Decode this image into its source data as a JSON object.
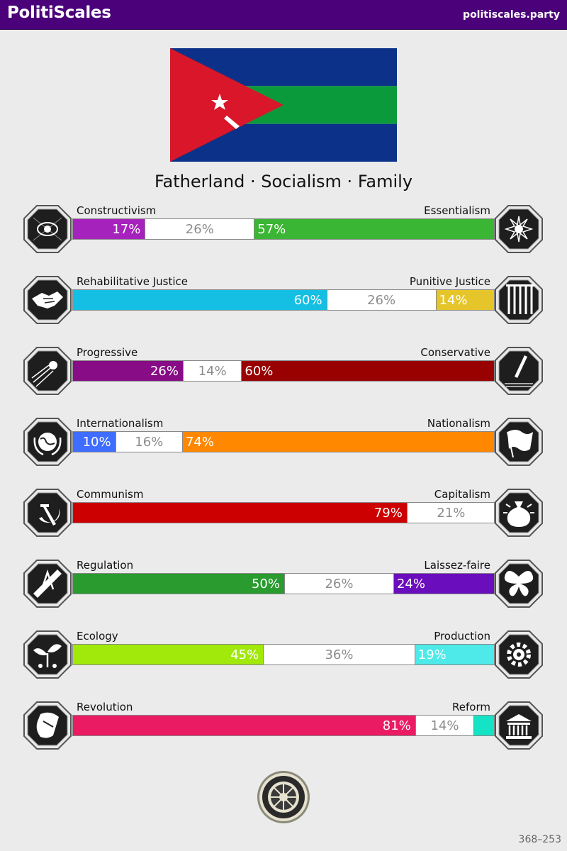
{
  "header": {
    "brand": "PolitiScales",
    "site": "politiscales.party"
  },
  "flag": {
    "colors": {
      "top": "#0b3188",
      "middle": "#0a9a3c",
      "bottom": "#0b3188",
      "triangle": "#d9162a",
      "emblem": "#ffffff"
    },
    "emblem": "crescent-star-sickle-icon"
  },
  "slogan": "Fatherland · Socialism · Family",
  "axes": [
    {
      "left_label": "Constructivism",
      "right_label": "Essentialism",
      "left_value": 17,
      "middle_value": 26,
      "right_value": 57,
      "left_text": "17%",
      "middle_text": "26%",
      "right_text": "57%",
      "left_color": "#a622bd",
      "right_color": "#3bb534",
      "left_icon": "eye-icon",
      "right_icon": "flower-icon"
    },
    {
      "left_label": "Rehabilitative Justice",
      "right_label": "Punitive Justice",
      "left_value": 60,
      "middle_value": 26,
      "right_value": 14,
      "left_text": "60%",
      "middle_text": "26%",
      "right_text": "14%",
      "left_color": "#14bfe3",
      "right_color": "#e5c52a",
      "left_icon": "handshake-icon",
      "right_icon": "prison-bars-icon"
    },
    {
      "left_label": "Progressive",
      "right_label": "Conservative",
      "left_value": 26,
      "middle_value": 14,
      "right_value": 60,
      "left_text": "26%",
      "middle_text": "14%",
      "right_text": "60%",
      "left_color": "#870c86",
      "right_color": "#990000",
      "left_icon": "comet-icon",
      "right_icon": "quill-pen-icon"
    },
    {
      "left_label": "Internationalism",
      "right_label": "Nationalism",
      "left_value": 10,
      "middle_value": 16,
      "right_value": 74,
      "left_text": "10%",
      "middle_text": "16%",
      "right_text": "74%",
      "left_color": "#3e6dff",
      "right_color": "#ff8800",
      "left_icon": "globe-wreath-icon",
      "right_icon": "waving-flag-icon"
    },
    {
      "left_label": "Communism",
      "right_label": "Capitalism",
      "left_value": 79,
      "middle_value": 21,
      "right_value": 0,
      "left_text": "79%",
      "middle_text": "21%",
      "right_text": "",
      "left_color": "#cc0000",
      "right_color": "#ffd800",
      "left_icon": "hammer-sickle-icon",
      "right_icon": "money-bag-icon"
    },
    {
      "left_label": "Regulation",
      "right_label": "Laissez-faire",
      "left_value": 50,
      "middle_value": 26,
      "right_value": 24,
      "left_text": "50%",
      "middle_text": "26%",
      "right_text": "24%",
      "left_color": "#2a9b2f",
      "right_color": "#6a0dbd",
      "left_icon": "ruler-compass-icon",
      "right_icon": "butterfly-icon"
    },
    {
      "left_label": "Ecology",
      "right_label": "Production",
      "left_value": 45,
      "middle_value": 36,
      "right_value": 19,
      "left_text": "45%",
      "middle_text": "36%",
      "right_text": "19%",
      "left_color": "#a0e90b",
      "right_color": "#4deae9",
      "left_icon": "sprout-icon",
      "right_icon": "gear-icon"
    },
    {
      "left_label": "Revolution",
      "right_label": "Reform",
      "left_value": 81,
      "middle_value": 14,
      "right_value": 5,
      "left_text": "81%",
      "middle_text": "14%",
      "right_text": "",
      "left_color": "#ea1b63",
      "right_color": "#14e3c5",
      "left_icon": "fist-flag-icon",
      "right_icon": "parliament-icon"
    }
  ],
  "seal": {
    "icon": "seal-icon"
  },
  "code": "368–253"
}
